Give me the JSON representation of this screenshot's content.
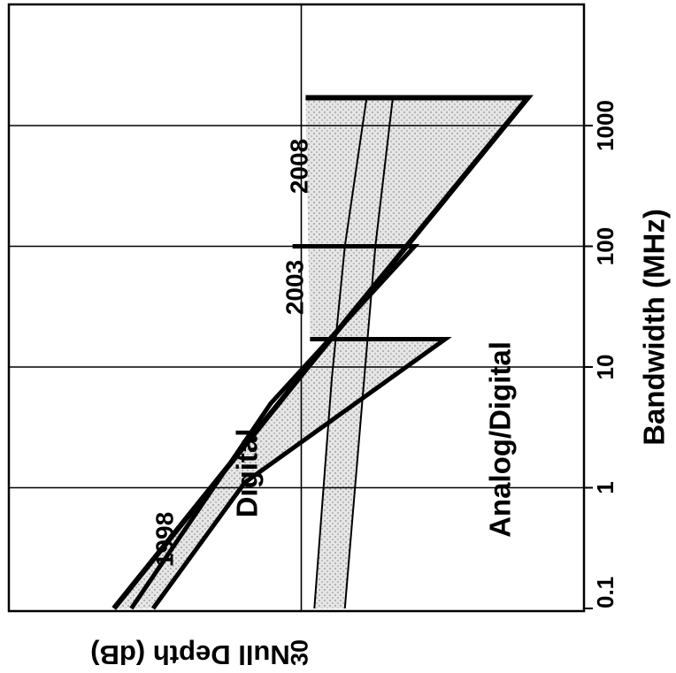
{
  "chart_data": {
    "type": "area",
    "orientation": "rotated-90-clockwise",
    "x_axis": {
      "label": "Bandwidth (MHz)",
      "scale": "log",
      "range": [
        0.1,
        5000
      ],
      "ticks": [
        0.1,
        1,
        10,
        100,
        1000
      ],
      "tick_labels": [
        "0.1",
        "1",
        "10",
        "100",
        "1000"
      ]
    },
    "y_axis": {
      "label": "Null Depth (dB)",
      "ticks": [
        30
      ],
      "tick_labels": [
        "30"
      ]
    },
    "grid": true,
    "regions": [
      {
        "name": "Digital",
        "color": "#c8c8c8"
      },
      {
        "name": "Analog/Digital",
        "color": "#c8c8c8"
      }
    ],
    "series": [
      {
        "name": "1998",
        "group": "Digital",
        "x": [
          0.1,
          1.1,
          17,
          17
        ],
        "y": [
          13,
          23.5,
          46.5,
          31
        ]
      },
      {
        "name": "2003",
        "group": "Digital",
        "x": [
          0.1,
          5,
          100,
          100
        ],
        "y": [
          10.5,
          26.5,
          43,
          29
        ]
      },
      {
        "name": "2008",
        "group": "Digital",
        "x": [
          0.1,
          10.5,
          1700,
          1700
        ],
        "y": [
          8.5,
          31,
          56,
          30.5
        ]
      },
      {
        "name": "",
        "group": "Analog/Digital",
        "x": [
          0.1,
          8,
          100,
          1700
        ],
        "y": [
          31.5,
          33.5,
          35,
          37.5
        ]
      },
      {
        "name": "",
        "group": "Analog/Digital",
        "x": [
          0.1,
          100,
          1700
        ],
        "y": [
          35,
          38.5,
          40.5
        ]
      }
    ],
    "labels": {
      "series_1998": "1998",
      "series_2003": "2003",
      "series_2008": "2008",
      "region_digital": "Digital",
      "region_analog": "Analog/Digital"
    }
  }
}
